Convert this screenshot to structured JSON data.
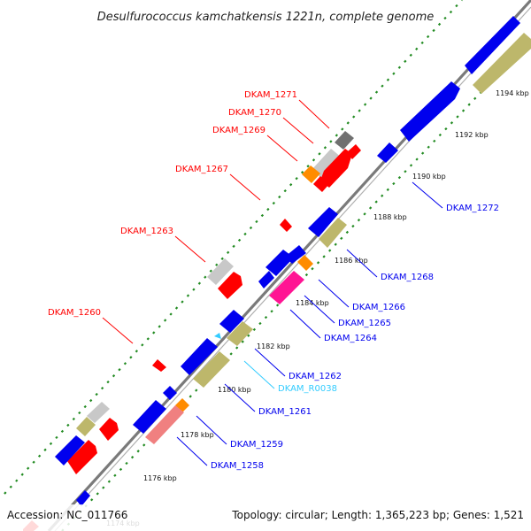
{
  "title": "Desulfurococcus kamchatkensis 1221n, complete genome",
  "footer": {
    "accession": "Accession: NC_011766",
    "summary": "Topology: circular; Length: 1,365,223 bp; Genes: 1,521"
  },
  "colors": {
    "backbone": "#8a8a8a",
    "blue": "#0000ee",
    "red": "#ff0000",
    "khaki": "#bdb76b",
    "orange": "#ff8c00",
    "magenta": "#ff1493",
    "pink": "#f08080",
    "grey": "#c8c8c8",
    "darkgrey": "#707070",
    "green": "#228b22",
    "cyan": "#33ccff"
  },
  "ticks": [
    {
      "label": "1174 kbp"
    },
    {
      "label": "1176 kbp"
    },
    {
      "label": "1178 kbp"
    },
    {
      "label": "1180 kbp"
    },
    {
      "label": "1182 kbp"
    },
    {
      "label": "1184 kbp"
    },
    {
      "label": "1186 kbp"
    },
    {
      "label": "1188 kbp"
    },
    {
      "label": "1190 kbp"
    },
    {
      "label": "1192 kbp"
    },
    {
      "label": "1194 kbp"
    }
  ],
  "gene_labels": [
    {
      "text": "DKAM_1271",
      "color": "red"
    },
    {
      "text": "DKAM_1270",
      "color": "red"
    },
    {
      "text": "DKAM_1269",
      "color": "red"
    },
    {
      "text": "DKAM_1267",
      "color": "red"
    },
    {
      "text": "DKAM_1263",
      "color": "red"
    },
    {
      "text": "DKAM_1260",
      "color": "red"
    },
    {
      "text": "DKAM_1272",
      "color": "blue"
    },
    {
      "text": "DKAM_1268",
      "color": "blue"
    },
    {
      "text": "DKAM_1266",
      "color": "blue"
    },
    {
      "text": "DKAM_1265",
      "color": "blue"
    },
    {
      "text": "DKAM_1264",
      "color": "blue"
    },
    {
      "text": "DKAM_1262",
      "color": "blue"
    },
    {
      "text": "DKAM_R0038",
      "color": "cyan"
    },
    {
      "text": "DKAM_1261",
      "color": "blue"
    },
    {
      "text": "DKAM_1259",
      "color": "blue"
    },
    {
      "text": "DKAM_1258",
      "color": "blue"
    }
  ]
}
